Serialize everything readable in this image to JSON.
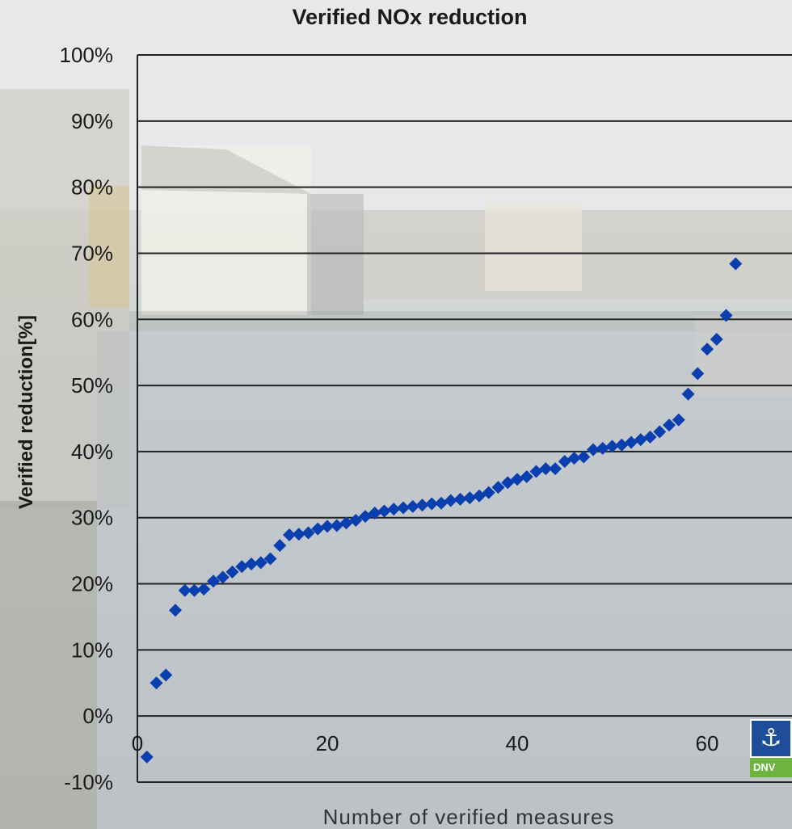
{
  "chart_data": {
    "type": "scatter",
    "title": "Verified NOx reduction",
    "xlabel": "Number of verified measures",
    "ylabel": "Verified reduction[%]",
    "xlim": [
      0,
      70
    ],
    "ylim": [
      -10,
      100
    ],
    "x_ticks": [
      {
        "value": 0,
        "label": "0"
      },
      {
        "value": 20,
        "label": "20"
      },
      {
        "value": 40,
        "label": "40"
      },
      {
        "value": 60,
        "label": "60"
      }
    ],
    "y_ticks": [
      {
        "value": 100,
        "label": "100%"
      },
      {
        "value": 90,
        "label": "90%"
      },
      {
        "value": 80,
        "label": "80%"
      },
      {
        "value": 70,
        "label": "70%"
      },
      {
        "value": 60,
        "label": "60%"
      },
      {
        "value": 50,
        "label": "50%"
      },
      {
        "value": 40,
        "label": "40%"
      },
      {
        "value": 30,
        "label": "30%"
      },
      {
        "value": 20,
        "label": "20%"
      },
      {
        "value": 10,
        "label": "10%"
      },
      {
        "value": 0,
        "label": "0%"
      },
      {
        "value": -10,
        "label": "-10%"
      }
    ],
    "grid": "horizontal",
    "marker_color": "#0a3fb0",
    "points": [
      [
        1,
        -6.2
      ],
      [
        2,
        5.0
      ],
      [
        3,
        6.2
      ],
      [
        4,
        16.0
      ],
      [
        5,
        19.0
      ],
      [
        6,
        19.0
      ],
      [
        7,
        19.2
      ],
      [
        8,
        20.4
      ],
      [
        9,
        21.0
      ],
      [
        10,
        21.8
      ],
      [
        11,
        22.6
      ],
      [
        12,
        23.0
      ],
      [
        13,
        23.2
      ],
      [
        14,
        23.8
      ],
      [
        15,
        25.8
      ],
      [
        16,
        27.4
      ],
      [
        17,
        27.5
      ],
      [
        18,
        27.7
      ],
      [
        19,
        28.3
      ],
      [
        20,
        28.7
      ],
      [
        21,
        28.8
      ],
      [
        22,
        29.2
      ],
      [
        23,
        29.6
      ],
      [
        24,
        30.2
      ],
      [
        25,
        30.7
      ],
      [
        26,
        31.0
      ],
      [
        27,
        31.3
      ],
      [
        28,
        31.5
      ],
      [
        29,
        31.7
      ],
      [
        30,
        31.9
      ],
      [
        31,
        32.1
      ],
      [
        32,
        32.2
      ],
      [
        33,
        32.6
      ],
      [
        34,
        32.8
      ],
      [
        35,
        33.0
      ],
      [
        36,
        33.3
      ],
      [
        37,
        33.8
      ],
      [
        38,
        34.6
      ],
      [
        39,
        35.3
      ],
      [
        40,
        35.8
      ],
      [
        41,
        36.2
      ],
      [
        42,
        37.0
      ],
      [
        43,
        37.4
      ],
      [
        44,
        37.4
      ],
      [
        45,
        38.5
      ],
      [
        46,
        39.0
      ],
      [
        47,
        39.2
      ],
      [
        48,
        40.3
      ],
      [
        49,
        40.5
      ],
      [
        50,
        40.8
      ],
      [
        51,
        41.0
      ],
      [
        52,
        41.4
      ],
      [
        53,
        41.8
      ],
      [
        54,
        42.2
      ],
      [
        55,
        43.0
      ],
      [
        56,
        44.0
      ],
      [
        57,
        44.8
      ],
      [
        58,
        48.7
      ],
      [
        59,
        51.8
      ],
      [
        60,
        55.5
      ],
      [
        61,
        57.0
      ],
      [
        62,
        60.6
      ],
      [
        63,
        68.4
      ]
    ]
  },
  "logo": {
    "text": "DNV",
    "color_top": "#1f4d9a",
    "color_bottom": "#6cb33f",
    "icon": "anchor-figures-icon"
  }
}
